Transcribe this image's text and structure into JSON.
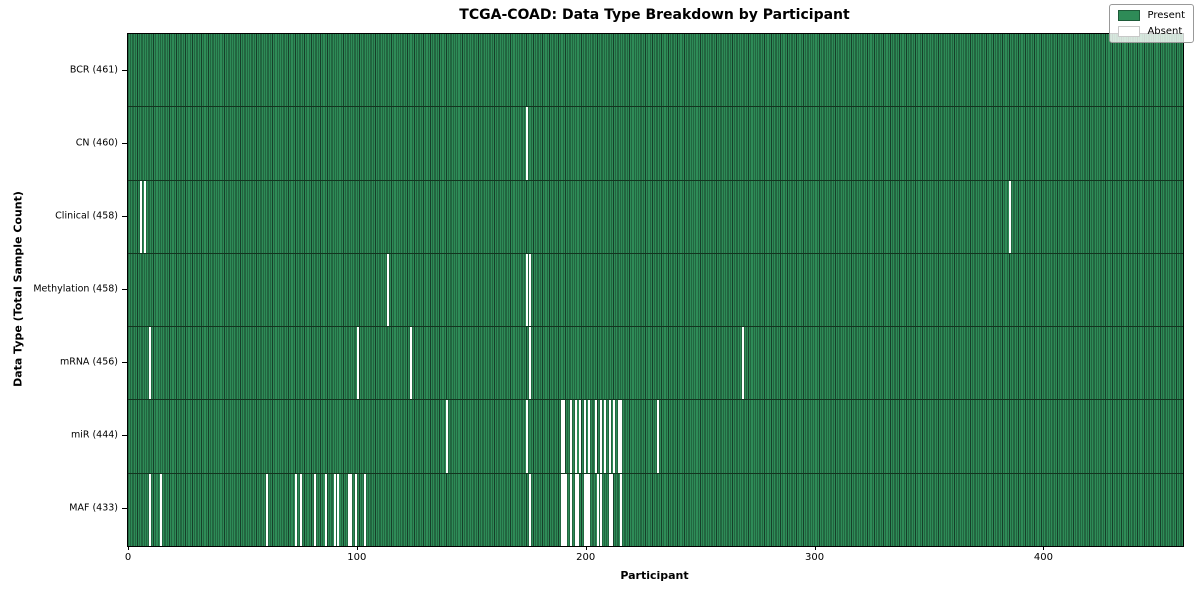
{
  "title": "TCGA-COAD: Data Type Breakdown by Participant",
  "xlabel": "Participant",
  "ylabel": "Data Type (Total Sample Count)",
  "legend": {
    "present_label": "Present",
    "absent_label": "Absent"
  },
  "colors": {
    "present": "#2e8b57",
    "cell_edge": "#16402a",
    "absent": "#ffffff",
    "legend_border": "#999999"
  },
  "chart_data": {
    "type": "heatmap",
    "title": "TCGA-COAD: Data Type Breakdown by Participant",
    "xlabel": "Participant",
    "ylabel": "Data Type (Total Sample Count)",
    "xlim": [
      0,
      461
    ],
    "x_ticks": [
      0,
      100,
      200,
      300,
      400
    ],
    "n_participants": 461,
    "grid": false,
    "legend_position": "upper right",
    "legend_entries": [
      "Present",
      "Absent"
    ],
    "rows": [
      {
        "name": "BCR",
        "label": "BCR (461)",
        "total": 461,
        "absent_participants": []
      },
      {
        "name": "CN",
        "label": "CN (460)",
        "total": 460,
        "absent_participants": [
          174
        ]
      },
      {
        "name": "Clinical",
        "label": "Clinical (458)",
        "total": 458,
        "absent_participants": [
          5,
          7,
          385
        ]
      },
      {
        "name": "Methylation",
        "label": "Methylation (458)",
        "total": 458,
        "absent_participants": [
          113,
          174,
          175
        ]
      },
      {
        "name": "mRNA",
        "label": "mRNA (456)",
        "total": 456,
        "absent_participants": [
          9,
          100,
          123,
          175,
          268
        ]
      },
      {
        "name": "miR",
        "label": "miR (444)",
        "total": 444,
        "absent_participants": [
          139,
          174,
          189,
          190,
          193,
          195,
          197,
          199,
          201,
          204,
          206,
          208,
          210,
          212,
          214,
          215,
          231
        ]
      },
      {
        "name": "MAF",
        "label": "MAF (433)",
        "total": 433,
        "absent_participants": [
          9,
          14,
          60,
          73,
          75,
          81,
          86,
          90,
          91,
          96,
          97,
          99,
          103,
          175,
          189,
          190,
          191,
          193,
          195,
          196,
          199,
          200,
          201,
          205,
          206,
          210,
          211,
          215
        ]
      }
    ]
  }
}
